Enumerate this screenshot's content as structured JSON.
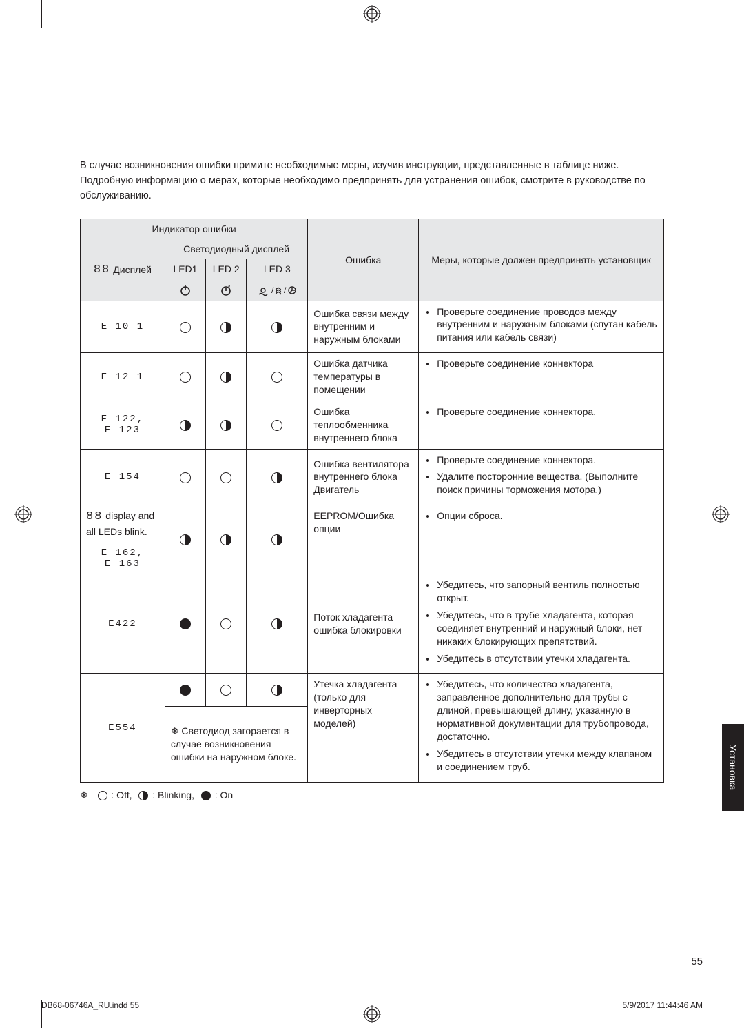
{
  "intro": "В случае возникновения ошибки примите необходимые меры, изучив инструкции, представленные в таблице ниже. Подробную информацию о мерах, которые необходимо предпринять для устранения ошибок, смотрите в руководстве по обслуживанию.",
  "headers": {
    "indicator": "Индикатор ошибки",
    "led_display": "Светодиодный дисплей",
    "display": "Дисплей",
    "led1": "LED1",
    "led2": "LED 2",
    "led3": "LED 3",
    "error": "Ошибка",
    "action": "Меры, которые должен предпринять установщик"
  },
  "rows": [
    {
      "code": "E 10 1",
      "led": [
        "off",
        "blink",
        "blink"
      ],
      "error": "Ошибка связи между внутренним и наружным блоками",
      "actions": [
        "Проверьте соединение проводов между внутренним и наружным блоками (спутан кабель питания или кабель связи)"
      ]
    },
    {
      "code": "E 12 1",
      "led": [
        "off",
        "blink",
        "off"
      ],
      "error": "Ошибка датчика температуры в помещении",
      "actions": [
        "Проверьте соединение коннектора"
      ]
    },
    {
      "code": "E 122,\nE 123",
      "led": [
        "blink",
        "blink",
        "off"
      ],
      "error": "Ошибка теплообменника внутреннего блока",
      "actions": [
        "Проверьте соединение коннектора."
      ]
    },
    {
      "code": "E 154",
      "led": [
        "off",
        "off",
        "blink"
      ],
      "error": "Ошибка вентилятора внутреннего блока Двигатель",
      "actions": [
        "Проверьте соединение коннектора.",
        "Удалите посторонние вещества. (Выполните поиск причины торможения мотора.)"
      ]
    },
    {
      "code_prefix_note": "display and all LEDs blink.",
      "code": "E 162,\nE 163",
      "led": [
        "blink",
        "blink",
        "blink"
      ],
      "error": "EEPROM/Ошибка опции",
      "actions": [
        "Опции сброса."
      ]
    },
    {
      "code": "E422",
      "led": [
        "on",
        "off",
        "blink"
      ],
      "error": "Поток хладагента ошибка блокировки",
      "actions": [
        "Убедитесь, что запорный вентиль полностью открыт.",
        "Убедитесь, что в трубе хладагента, которая соединяет внутренний и наружный блоки, нет никаких блокирующих препятствий.",
        "Убедитесь в отсутствии утечки хладагента."
      ]
    },
    {
      "code": "E554",
      "led": [
        "on",
        "off",
        "blink"
      ],
      "note": "Светодиод загорается в случае возникновения ошибки на наружном блоке.",
      "error": "Утечка хладагента (только для инверторных моделей)",
      "actions": [
        "Убедитесь, что количество хладагента, заправленное дополнительно для трубы с длиной, превышающей длину, указанную в нормативной документации для трубопровода, достаточно.",
        "Убедитесь в отсутствии утечки между клапаном и соединением труб."
      ]
    }
  ],
  "legend": {
    "off": ": Off,",
    "blink": ": Blinking,",
    "on": ": On"
  },
  "side_tab": "Установка",
  "page_num": "55",
  "footer_left": "DB68-06746A_RU.indd   55",
  "footer_right": "5/9/2017   11:44:46 AM",
  "seg88": "88",
  "note_marker": "❄"
}
